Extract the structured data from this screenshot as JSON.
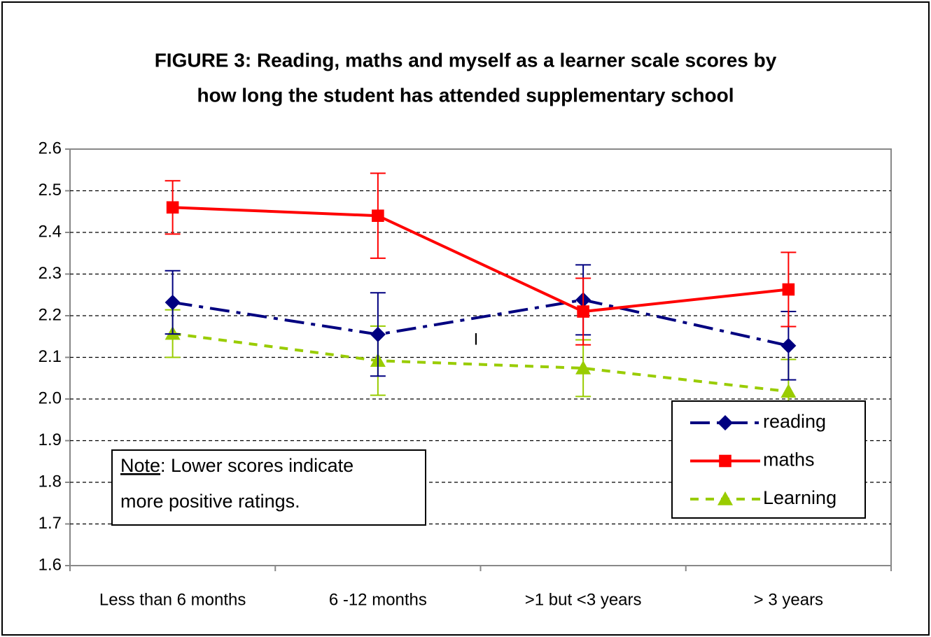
{
  "chart_data": {
    "type": "line",
    "title": [
      "FIGURE 3: Reading, maths and myself as a learner scale scores by",
      "how long the student has attended supplementary school"
    ],
    "categories": [
      "Less than 6 months",
      "6 -12 months",
      ">1 but <3 years",
      "> 3 years"
    ],
    "series": [
      {
        "name": "reading",
        "color": "#000080",
        "marker": "diamond",
        "dash": "28 10 6 10",
        "values": [
          2.232,
          2.155,
          2.238,
          2.128
        ],
        "errors": [
          0.076,
          0.1,
          0.084,
          0.082
        ]
      },
      {
        "name": "maths",
        "color": "#ff0000",
        "marker": "square",
        "dash": "none",
        "values": [
          2.46,
          2.44,
          2.21,
          2.263
        ],
        "errors": [
          0.064,
          0.102,
          0.08,
          0.089
        ]
      },
      {
        "name": "Learning",
        "color": "#99cc00",
        "marker": "triangle",
        "dash": "12 10",
        "values": [
          2.157,
          2.092,
          2.074,
          2.018
        ],
        "errors": [
          0.057,
          0.083,
          0.068,
          0.077
        ]
      }
    ],
    "ylim": [
      1.6,
      2.6
    ],
    "yticks": [
      1.6,
      1.7,
      1.8,
      1.9,
      {
        "value": 2,
        "label": "2.0"
      },
      2.1,
      2.2,
      2.3,
      2.4,
      2.5,
      2.6
    ],
    "grid": true,
    "legend": "lower right",
    "note": {
      "label": "Note",
      "text": ": Lower scores indicate",
      "line2": "more positive ratings."
    },
    "annotation": "I"
  }
}
